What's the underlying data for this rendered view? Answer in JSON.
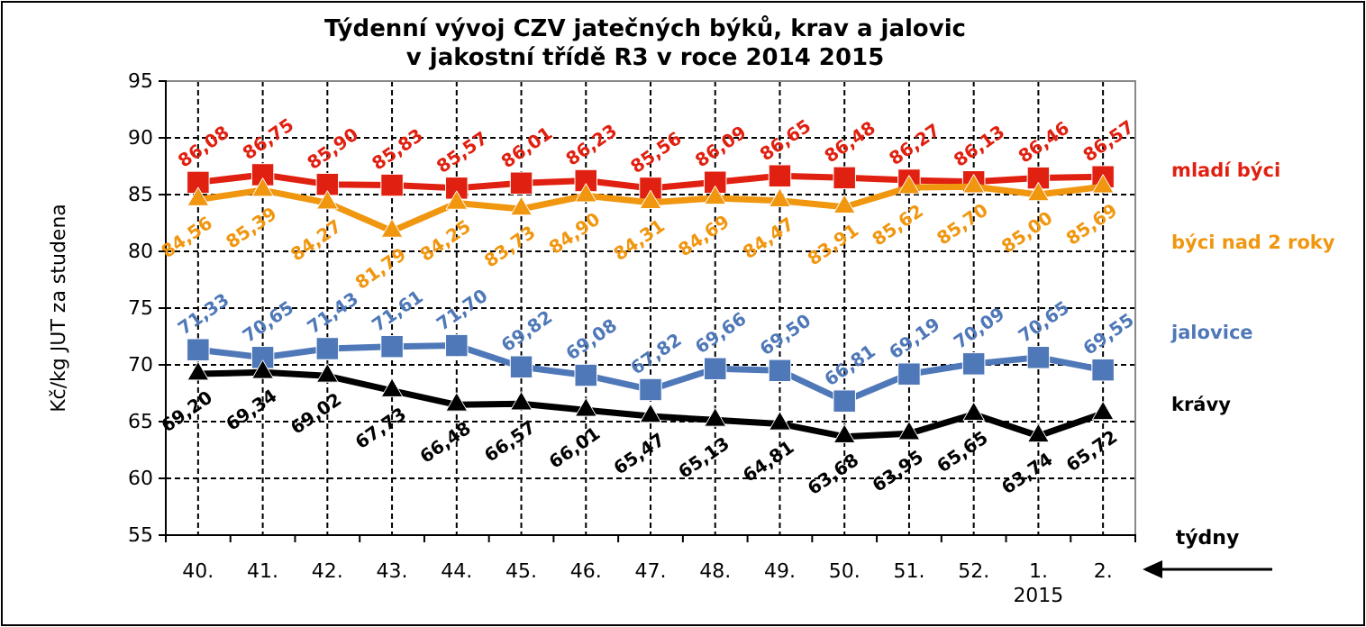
{
  "chart_data": {
    "type": "line",
    "title": "Týdenní vývoj CZV jatečných býků, krav a jalovic\nv jakostní třídě R3   v roce 2014  2015",
    "xlabel": "týdny",
    "ylabel": "Kč/kg JUT za studena",
    "categories": [
      "40.",
      "41.",
      "42.",
      "43.",
      "44.",
      "45.",
      "46.",
      "47.",
      "48.",
      "49.",
      "50.",
      "51.",
      "52.",
      "1.",
      "2."
    ],
    "ylim": [
      55,
      95
    ],
    "yticks": [
      55,
      60,
      65,
      70,
      75,
      80,
      85,
      90,
      95
    ],
    "grid": true,
    "legend": "right",
    "line_style": "solid",
    "annotations": [
      "2015"
    ],
    "series": [
      {
        "name": "mladí býci",
        "color": "#e02010",
        "marker": "square",
        "values": [
          86.08,
          86.75,
          85.9,
          85.83,
          85.57,
          86.01,
          86.23,
          85.56,
          86.09,
          86.65,
          86.48,
          86.27,
          86.13,
          86.46,
          86.57
        ],
        "value_labels": [
          "86,08",
          "86,75",
          "85,90",
          "85,83",
          "85,57",
          "86,01",
          "86,23",
          "85,56",
          "86,09",
          "86,65",
          "86,48",
          "86,27",
          "86,13",
          "86,46",
          "86,57"
        ]
      },
      {
        "name": "býci nad 2 roky",
        "color": "#f0960f",
        "marker": "triangle",
        "values": [
          84.56,
          85.39,
          84.27,
          81.79,
          84.25,
          83.73,
          84.9,
          84.31,
          84.69,
          84.47,
          83.91,
          85.62,
          85.7,
          85.0,
          85.69
        ],
        "value_labels": [
          "84,56",
          "85,39",
          "84,27",
          "81,79",
          "84,25",
          "83,73",
          "84,90",
          "84,31",
          "84,69",
          "84,47",
          "83,91",
          "85,62",
          "85,70",
          "85,00",
          "85,69"
        ]
      },
      {
        "name": "jalovice",
        "color": "#4f78b8",
        "marker": "square",
        "values": [
          71.33,
          70.65,
          71.43,
          71.61,
          71.7,
          69.82,
          69.08,
          67.82,
          69.66,
          69.5,
          66.81,
          69.19,
          70.09,
          70.65,
          69.55
        ],
        "value_labels": [
          "71,33",
          "70,65",
          "71,43",
          "71,61",
          "71,70",
          "69,82",
          "69,08",
          "67,82",
          "69,66",
          "69,50",
          "66,81",
          "69,19",
          "70,09",
          "70,65",
          "69,55"
        ]
      },
      {
        "name": "krávy",
        "color": "#000000",
        "marker": "triangle",
        "values": [
          69.2,
          69.34,
          69.02,
          67.73,
          66.48,
          66.57,
          66.01,
          65.47,
          65.13,
          64.81,
          63.68,
          63.95,
          65.65,
          63.74,
          65.72
        ],
        "value_labels": [
          "69,20",
          "69,34",
          "69,02",
          "67,73",
          "66,48",
          "66,57",
          "66,01",
          "65,47",
          "65,13",
          "64,81",
          "63,68",
          "63,95",
          "65,65",
          "63,74",
          "65,72"
        ]
      }
    ]
  }
}
